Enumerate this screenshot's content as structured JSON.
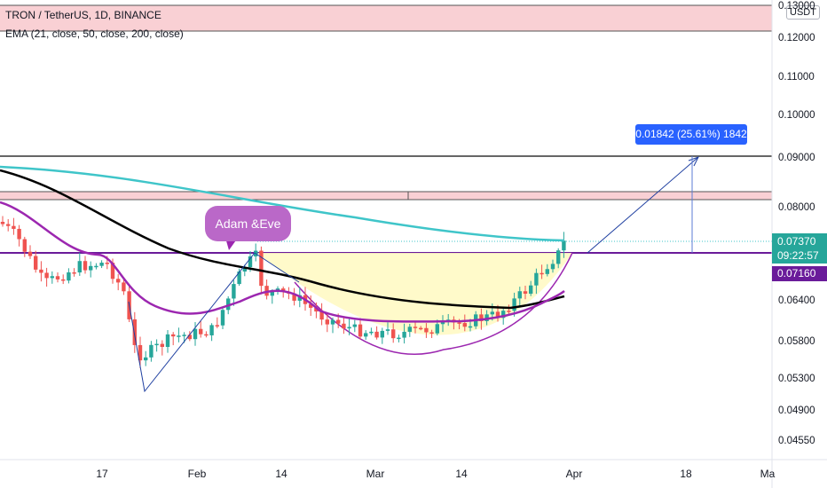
{
  "header": {
    "title": "TRON / TetherUS, 1D, BINANCE",
    "indicator": "EMA (21, close, 50, close, 200, close)"
  },
  "price_axis": {
    "currency": "USDT",
    "ticks": [
      "0.13000",
      "0.12000",
      "0.11000",
      "0.10000",
      "0.09000",
      "0.08000",
      "0.07370",
      "0.06400",
      "0.05800",
      "0.05300",
      "0.04900",
      "0.04550"
    ]
  },
  "time_axis": {
    "ticks": [
      "17",
      "Feb",
      "14",
      "Mar",
      "14",
      "Apr",
      "18",
      "Ma"
    ]
  },
  "labels": {
    "last_price": "0.07370",
    "countdown": "09:22:57",
    "level_price": "0.07160",
    "measure": "0.01842 (25.61%) 1842",
    "pattern": "Adam &Eve"
  },
  "colors": {
    "up": "#26a69a",
    "down": "#ef5350",
    "ema21": "#9c27b0",
    "ema50": "#000000",
    "ema200": "#3fc5c9",
    "level": "#6a1b9a",
    "drawing": "#1e3fa0",
    "zone": "#f8c8cc",
    "cup_fill": "#fff9c4"
  }
}
